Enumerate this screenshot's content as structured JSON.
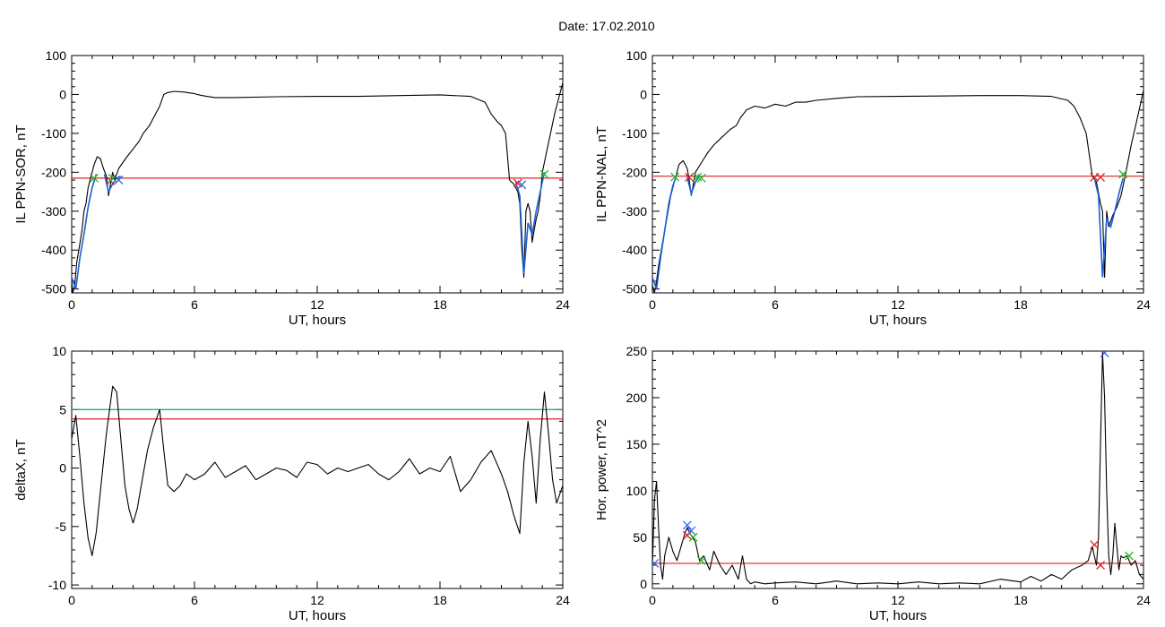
{
  "figure": {
    "title": "Date:  17.02.2010"
  },
  "colors": {
    "axis": "#000000",
    "trace": "#000000",
    "highlight": "#1a5fd6",
    "threshold": "#e02020",
    "threshold2": "#1a9a8a",
    "marker_red": "#e02020",
    "marker_green": "#22bb22",
    "marker_blue": "#3366ee"
  },
  "chart_data": [
    {
      "id": "ppn-sor",
      "type": "line",
      "xlabel": "UT, hours",
      "ylabel": "IL PPN-SOR, nT",
      "xlim": [
        0,
        24
      ],
      "ylim": [
        -510,
        100
      ],
      "xticks": [
        0,
        6,
        12,
        18,
        24
      ],
      "yticks": [
        -500,
        -400,
        -300,
        -200,
        -100,
        0,
        100
      ],
      "thresholds": [
        {
          "y": -215,
          "color": "threshold"
        }
      ],
      "trace": {
        "x": [
          0,
          0.05,
          0.15,
          0.25,
          0.35,
          0.5,
          0.6,
          0.7,
          0.8,
          0.9,
          1.0,
          1.1,
          1.25,
          1.4,
          1.55,
          1.7,
          1.8,
          1.9,
          2.0,
          2.1,
          2.3,
          2.5,
          2.7,
          3.0,
          3.3,
          3.5,
          3.8,
          4.0,
          4.3,
          4.5,
          4.7,
          5.0,
          5.5,
          6.0,
          6.3,
          6.6,
          7.0,
          8,
          10,
          12,
          14,
          16,
          18,
          19.5,
          20.2,
          20.5,
          20.8,
          21.0,
          21.2,
          21.4,
          21.6,
          21.8,
          21.9,
          22.0,
          22.1,
          22.2,
          22.3,
          22.4,
          22.5,
          22.6,
          22.7,
          22.8,
          22.9,
          23.0,
          23.2,
          23.4,
          23.6,
          23.8,
          24.0
        ],
        "y": [
          -480,
          -510,
          -490,
          -430,
          -400,
          -350,
          -300,
          -280,
          -240,
          -220,
          -200,
          -180,
          -160,
          -165,
          -190,
          -210,
          -260,
          -230,
          -200,
          -220,
          -190,
          -175,
          -160,
          -140,
          -120,
          -100,
          -80,
          -60,
          -30,
          0,
          5,
          8,
          6,
          2,
          -2,
          -5,
          -8,
          -8,
          -6,
          -5,
          -5,
          -3,
          -1,
          -5,
          -20,
          -50,
          -70,
          -80,
          -100,
          -220,
          -230,
          -250,
          -280,
          -400,
          -470,
          -300,
          -280,
          -300,
          -380,
          -350,
          -320,
          -300,
          -260,
          -200,
          -150,
          -100,
          -50,
          -10,
          30
        ]
      },
      "highlight": [
        {
          "x": [
            0,
            0.2,
            0.4,
            0.6,
            0.8,
            1.0,
            1.2
          ],
          "y": [
            -470,
            -500,
            -420,
            -360,
            -290,
            -240,
            -205
          ]
        },
        {
          "x": [
            1.6,
            1.8,
            2.0,
            2.2,
            2.4
          ],
          "y": [
            -205,
            -250,
            -230,
            -215,
            -210
          ]
        },
        {
          "x": [
            21.7,
            21.9,
            22.1,
            22.3,
            22.5,
            22.7,
            22.9,
            23.1
          ],
          "y": [
            -225,
            -260,
            -460,
            -330,
            -360,
            -300,
            -250,
            -200
          ]
        }
      ],
      "markers": [
        {
          "x": 1.1,
          "y": -215,
          "color": "marker_green"
        },
        {
          "x": 1.9,
          "y": -222,
          "color": "marker_red"
        },
        {
          "x": 2.0,
          "y": -215,
          "color": "marker_green"
        },
        {
          "x": 2.3,
          "y": -220,
          "color": "marker_blue"
        },
        {
          "x": 21.8,
          "y": -228,
          "color": "marker_red"
        },
        {
          "x": 22.0,
          "y": -232,
          "color": "marker_blue"
        },
        {
          "x": 23.1,
          "y": -205,
          "color": "marker_green"
        }
      ]
    },
    {
      "id": "ppn-nal",
      "type": "line",
      "xlabel": "UT, hours",
      "ylabel": "IL PPN-NAL, nT",
      "xlim": [
        0,
        24
      ],
      "ylim": [
        -510,
        100
      ],
      "xticks": [
        0,
        6,
        12,
        18,
        24
      ],
      "yticks": [
        -500,
        -400,
        -300,
        -200,
        -100,
        0,
        100
      ],
      "thresholds": [
        {
          "y": -210,
          "color": "threshold"
        }
      ],
      "trace": {
        "x": [
          0,
          0.1,
          0.2,
          0.3,
          0.5,
          0.7,
          0.9,
          1.1,
          1.3,
          1.5,
          1.7,
          1.8,
          1.9,
          2.1,
          2.4,
          2.7,
          3.0,
          3.4,
          3.8,
          4.1,
          4.3,
          4.6,
          5.0,
          5.5,
          6.0,
          6.5,
          7.0,
          7.5,
          8.0,
          9.0,
          10,
          12,
          14,
          16,
          18,
          19.5,
          20.3,
          20.6,
          20.9,
          21.2,
          21.5,
          21.7,
          21.9,
          22.0,
          22.1,
          22.2,
          22.3,
          22.5,
          22.7,
          22.9,
          23.1,
          23.4,
          23.7,
          24.0
        ],
        "y": [
          -490,
          -510,
          -480,
          -440,
          -380,
          -320,
          -260,
          -220,
          -180,
          -170,
          -190,
          -220,
          -260,
          -200,
          -175,
          -150,
          -130,
          -110,
          -90,
          -80,
          -60,
          -40,
          -30,
          -35,
          -25,
          -30,
          -20,
          -20,
          -15,
          -10,
          -6,
          -5,
          -4,
          -3,
          -3,
          -5,
          -15,
          -30,
          -60,
          -100,
          -210,
          -225,
          -280,
          -300,
          -470,
          -300,
          -340,
          -310,
          -290,
          -260,
          -210,
          -130,
          -60,
          10
        ]
      },
      "highlight": [
        {
          "x": [
            0,
            0.2,
            0.4,
            0.6,
            0.8,
            1.0,
            1.2
          ],
          "y": [
            -470,
            -500,
            -420,
            -350,
            -280,
            -235,
            -205
          ]
        },
        {
          "x": [
            1.7,
            1.9,
            2.1,
            2.3
          ],
          "y": [
            -212,
            -255,
            -225,
            -210
          ]
        },
        {
          "x": [
            21.6,
            21.8,
            22.0,
            22.2,
            22.4,
            22.6,
            22.8,
            23.0
          ],
          "y": [
            -215,
            -260,
            -470,
            -320,
            -340,
            -300,
            -255,
            -215
          ]
        }
      ],
      "markers": [
        {
          "x": 1.1,
          "y": -212,
          "color": "marker_green"
        },
        {
          "x": 1.8,
          "y": -213,
          "color": "marker_red"
        },
        {
          "x": 2.2,
          "y": -212,
          "color": "marker_green"
        },
        {
          "x": 2.4,
          "y": -215,
          "color": "marker_green"
        },
        {
          "x": 21.6,
          "y": -213,
          "color": "marker_red"
        },
        {
          "x": 21.9,
          "y": -213,
          "color": "marker_red"
        },
        {
          "x": 23.0,
          "y": -205,
          "color": "marker_green"
        }
      ]
    },
    {
      "id": "deltax",
      "type": "line",
      "xlabel": "UT, hours",
      "ylabel": "deltaX, nT",
      "xlim": [
        0,
        24
      ],
      "ylim": [
        -10.3,
        10
      ],
      "xticks": [
        0,
        6,
        12,
        18,
        24
      ],
      "yticks": [
        -10,
        -5,
        0,
        5,
        10
      ],
      "thresholds": [
        {
          "y": 5.0,
          "color": "threshold2"
        },
        {
          "y": 4.2,
          "color": "threshold"
        }
      ],
      "trace": {
        "x": [
          0,
          0.2,
          0.4,
          0.6,
          0.8,
          1.0,
          1.2,
          1.4,
          1.7,
          2.0,
          2.2,
          2.4,
          2.6,
          2.8,
          3.0,
          3.2,
          3.4,
          3.7,
          4.0,
          4.3,
          4.5,
          4.7,
          5.0,
          5.3,
          5.6,
          6.0,
          6.5,
          7.0,
          7.5,
          8.0,
          8.5,
          9.0,
          9.5,
          10,
          10.5,
          11,
          11.5,
          12,
          12.5,
          13,
          13.5,
          14,
          14.5,
          15,
          15.5,
          16,
          16.5,
          17,
          17.5,
          18,
          18.5,
          19,
          19.5,
          20,
          20.5,
          21,
          21.3,
          21.6,
          21.9,
          22.1,
          22.3,
          22.5,
          22.7,
          22.9,
          23.1,
          23.3,
          23.5,
          23.7,
          24.0
        ],
        "y": [
          2.5,
          4.5,
          1.0,
          -3.0,
          -6.0,
          -7.5,
          -5.5,
          -2.0,
          3.0,
          7.0,
          6.5,
          2.5,
          -1.5,
          -3.5,
          -4.7,
          -3.5,
          -1.5,
          1.5,
          3.5,
          5.0,
          1.5,
          -1.5,
          -2.0,
          -1.5,
          -0.5,
          -1.0,
          -0.5,
          0.5,
          -0.8,
          -0.3,
          0.2,
          -1.0,
          -0.5,
          0.0,
          -0.2,
          -0.8,
          0.5,
          0.3,
          -0.5,
          0.0,
          -0.3,
          0.0,
          0.3,
          -0.5,
          -1.0,
          -0.3,
          0.8,
          -0.5,
          0.0,
          -0.3,
          1.0,
          -2.0,
          -1.0,
          0.5,
          1.5,
          -0.5,
          -2.0,
          -4.0,
          -5.6,
          0.5,
          4.0,
          1.0,
          -3.0,
          2.5,
          6.5,
          3.0,
          -1.0,
          -3.0,
          -1.5
        ]
      },
      "highlight": [],
      "markers": []
    },
    {
      "id": "hor-power",
      "type": "line",
      "xlabel": "UT, hours",
      "ylabel": "Hor. power, nT^2",
      "xlim": [
        0,
        24
      ],
      "ylim": [
        -5,
        250
      ],
      "xticks": [
        0,
        6,
        12,
        18,
        24
      ],
      "yticks": [
        0,
        50,
        100,
        150,
        200,
        250
      ],
      "thresholds": [
        {
          "y": 22,
          "color": "threshold"
        }
      ],
      "trace": {
        "x": [
          0,
          0.1,
          0.2,
          0.3,
          0.4,
          0.5,
          0.6,
          0.8,
          1.0,
          1.2,
          1.4,
          1.6,
          1.7,
          1.9,
          2.1,
          2.3,
          2.5,
          2.8,
          3.0,
          3.3,
          3.6,
          3.9,
          4.2,
          4.4,
          4.6,
          4.8,
          5.0,
          5.5,
          6.0,
          7,
          8,
          9,
          10,
          11,
          12,
          13,
          14,
          15,
          16,
          17,
          18,
          18.5,
          19,
          19.5,
          20,
          20.5,
          21,
          21.3,
          21.5,
          21.7,
          21.8,
          21.9,
          22.0,
          22.1,
          22.2,
          22.3,
          22.4,
          22.5,
          22.6,
          22.7,
          22.8,
          22.9,
          23.0,
          23.2,
          23.4,
          23.6,
          23.8,
          24.0
        ],
        "y": [
          20,
          90,
          110,
          60,
          20,
          5,
          30,
          50,
          35,
          25,
          40,
          55,
          60,
          52,
          45,
          25,
          30,
          15,
          35,
          20,
          10,
          20,
          5,
          30,
          5,
          0,
          2,
          0,
          1,
          2,
          0,
          3,
          0,
          1,
          0,
          2,
          0,
          1,
          0,
          5,
          2,
          8,
          3,
          10,
          5,
          15,
          20,
          25,
          40,
          20,
          50,
          150,
          248,
          200,
          100,
          30,
          10,
          30,
          65,
          40,
          15,
          30,
          28,
          30,
          20,
          25,
          10,
          5
        ]
      },
      "highlight": [],
      "markers": [
        {
          "x": 0.1,
          "y": 22,
          "color": "marker_blue"
        },
        {
          "x": 1.7,
          "y": 52,
          "color": "marker_red"
        },
        {
          "x": 1.7,
          "y": 63,
          "color": "marker_blue"
        },
        {
          "x": 1.9,
          "y": 57,
          "color": "marker_blue"
        },
        {
          "x": 2.0,
          "y": 50,
          "color": "marker_green"
        },
        {
          "x": 2.4,
          "y": 25,
          "color": "marker_green"
        },
        {
          "x": 21.6,
          "y": 42,
          "color": "marker_red"
        },
        {
          "x": 21.9,
          "y": 20,
          "color": "marker_red"
        },
        {
          "x": 22.1,
          "y": 248,
          "color": "marker_blue"
        },
        {
          "x": 23.3,
          "y": 30,
          "color": "marker_green"
        }
      ]
    }
  ]
}
